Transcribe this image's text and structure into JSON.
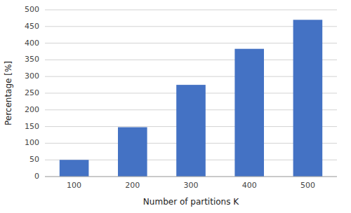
{
  "chart_data": {
    "type": "bar",
    "categories": [
      "100",
      "200",
      "300",
      "400",
      "500"
    ],
    "values": [
      50,
      148,
      275,
      383,
      470
    ],
    "color": "#4472C4",
    "xlabel": "Number of partitions K",
    "ylabel": "Percentage [%]",
    "ylim": [
      0,
      500
    ],
    "yticks": [
      0,
      50,
      100,
      150,
      200,
      250,
      300,
      350,
      400,
      450,
      500
    ],
    "grid": true
  }
}
